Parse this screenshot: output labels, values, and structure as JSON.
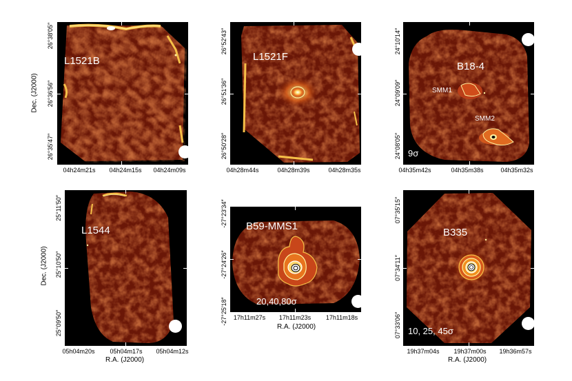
{
  "axis_labels": {
    "dec": "Dec. (J2000)",
    "ra": "R.A. (J2000)"
  },
  "colors": {
    "background": "#000000",
    "map_dark": "#5a1206",
    "map_mid": "#8a2a0c",
    "map_bright": "#f6c048",
    "contour": "#fff2a0",
    "beam": "#ffffff"
  },
  "panels": [
    {
      "name": "L1521B",
      "dec_ticks": [
        "26°38′05″",
        "26°36′56″",
        "26°35′47″"
      ],
      "ra_ticks": [
        "04h24m21s",
        "04h24m15s",
        "04h24m09s"
      ]
    },
    {
      "name": "L1521F",
      "dec_ticks": [
        "26°52′43″",
        "26°51′36″",
        "26°50′28″"
      ],
      "ra_ticks": [
        "04h28m44s",
        "04h28m39s",
        "04h28m35s"
      ]
    },
    {
      "name": "B18-4",
      "sources": [
        "SMM1",
        "SMM2"
      ],
      "contour_note": "9σ",
      "dec_ticks": [
        "24°10′14″",
        "24°09′09″",
        "24°08′05″"
      ],
      "ra_ticks": [
        "04h35m42s",
        "04h35m38s",
        "04h35m32s"
      ]
    },
    {
      "name": "L1544",
      "dec_ticks": [
        "25°11′50″",
        "25°10′50″",
        "25°09′50″"
      ],
      "ra_ticks": [
        "05h04m20s",
        "05h04m17s",
        "05h04m12s"
      ]
    },
    {
      "name": "B59-MMS1",
      "contour_note": "20,40,80σ",
      "dec_ticks": [
        "-27°23′34″",
        "-27°24′26″",
        "-27°25′18″"
      ],
      "ra_ticks": [
        "17h11m27s",
        "17h11m23s",
        "17h11m18s"
      ]
    },
    {
      "name": "B335",
      "contour_note": "10, 25, 45σ",
      "dec_ticks": [
        "07°35′15″",
        "07°34′11″",
        "07°33′06″"
      ],
      "ra_ticks": [
        "19h37m04s",
        "19h37m00s",
        "19h36m57s"
      ]
    }
  ]
}
